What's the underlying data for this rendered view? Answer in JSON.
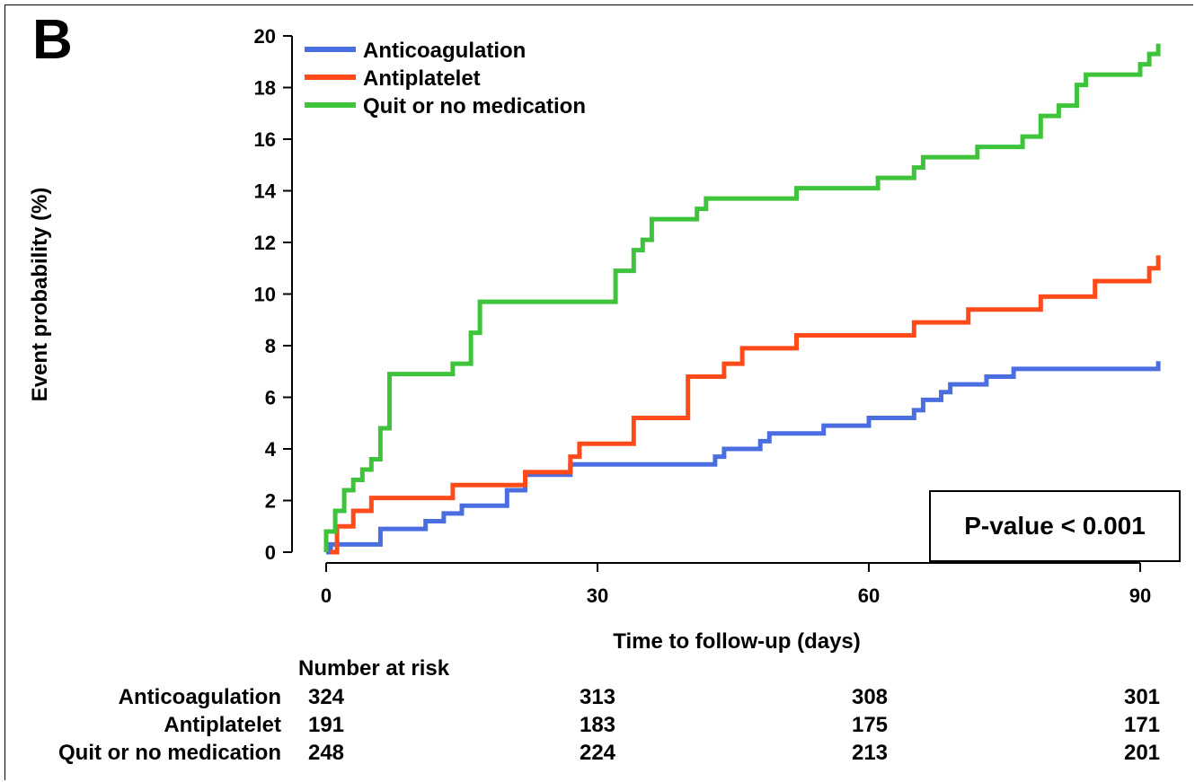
{
  "panel_label": "B",
  "chart_data": {
    "type": "line",
    "xlabel": "Time to follow-up (days)",
    "ylabel": "Event probability (%)",
    "xlim": [
      -1,
      92
    ],
    "ylim": [
      0,
      20
    ],
    "xticks": [
      0,
      30,
      60,
      90
    ],
    "yticks": [
      0,
      2,
      4,
      6,
      8,
      10,
      12,
      14,
      16,
      18,
      20
    ],
    "grid": false,
    "legend": "top-left",
    "line_style": "step",
    "series": [
      {
        "name": "Anticoagulation",
        "color": "#4a6ee0",
        "points": [
          [
            0,
            0
          ],
          [
            0.5,
            0
          ],
          [
            0.5,
            0.3
          ],
          [
            6,
            0.3
          ],
          [
            6,
            0.9
          ],
          [
            11,
            0.9
          ],
          [
            11,
            1.2
          ],
          [
            13,
            1.2
          ],
          [
            13,
            1.5
          ],
          [
            15,
            1.5
          ],
          [
            15,
            1.8
          ],
          [
            20,
            1.8
          ],
          [
            20,
            2.4
          ],
          [
            22,
            2.4
          ],
          [
            22,
            3.0
          ],
          [
            27,
            3.0
          ],
          [
            27,
            3.4
          ],
          [
            43,
            3.4
          ],
          [
            43,
            3.7
          ],
          [
            44,
            3.7
          ],
          [
            44,
            4.0
          ],
          [
            48,
            4.0
          ],
          [
            48,
            4.3
          ],
          [
            49,
            4.3
          ],
          [
            49,
            4.6
          ],
          [
            55,
            4.6
          ],
          [
            55,
            4.9
          ],
          [
            60,
            4.9
          ],
          [
            60,
            5.2
          ],
          [
            65,
            5.2
          ],
          [
            65,
            5.5
          ],
          [
            66,
            5.5
          ],
          [
            66,
            5.9
          ],
          [
            68,
            5.9
          ],
          [
            68,
            6.2
          ],
          [
            69,
            6.2
          ],
          [
            69,
            6.5
          ],
          [
            73,
            6.5
          ],
          [
            73,
            6.8
          ],
          [
            76,
            6.8
          ],
          [
            76,
            7.1
          ],
          [
            92,
            7.1
          ],
          [
            92,
            7.4
          ]
        ]
      },
      {
        "name": "Antiplatelet",
        "color": "#ff4a1a",
        "points": [
          [
            0.5,
            0
          ],
          [
            1.2,
            0
          ],
          [
            1.2,
            1.0
          ],
          [
            3,
            1.0
          ],
          [
            3,
            1.6
          ],
          [
            5,
            1.6
          ],
          [
            5,
            2.1
          ],
          [
            14,
            2.1
          ],
          [
            14,
            2.6
          ],
          [
            22,
            2.6
          ],
          [
            22,
            3.1
          ],
          [
            27,
            3.1
          ],
          [
            27,
            3.7
          ],
          [
            28,
            3.7
          ],
          [
            28,
            4.2
          ],
          [
            34,
            4.2
          ],
          [
            34,
            5.2
          ],
          [
            40,
            5.2
          ],
          [
            40,
            6.8
          ],
          [
            44,
            6.8
          ],
          [
            44,
            7.3
          ],
          [
            46,
            7.3
          ],
          [
            46,
            7.9
          ],
          [
            52,
            7.9
          ],
          [
            52,
            8.4
          ],
          [
            65,
            8.4
          ],
          [
            65,
            8.9
          ],
          [
            71,
            8.9
          ],
          [
            71,
            9.4
          ],
          [
            79,
            9.4
          ],
          [
            79,
            9.9
          ],
          [
            85,
            9.9
          ],
          [
            85,
            10.5
          ],
          [
            91,
            10.5
          ],
          [
            91,
            11.0
          ],
          [
            92,
            11.0
          ],
          [
            92,
            11.5
          ]
        ]
      },
      {
        "name": "Quit or no medication",
        "color": "#3ec43a",
        "points": [
          [
            0,
            0
          ],
          [
            0,
            0.8
          ],
          [
            1,
            0.8
          ],
          [
            1,
            1.6
          ],
          [
            2,
            1.6
          ],
          [
            2,
            2.4
          ],
          [
            3,
            2.4
          ],
          [
            3,
            2.8
          ],
          [
            4,
            2.8
          ],
          [
            4,
            3.2
          ],
          [
            5,
            3.2
          ],
          [
            5,
            3.6
          ],
          [
            6,
            3.6
          ],
          [
            6,
            4.8
          ],
          [
            7,
            4.8
          ],
          [
            7,
            6.9
          ],
          [
            14,
            6.9
          ],
          [
            14,
            7.3
          ],
          [
            16,
            7.3
          ],
          [
            16,
            8.5
          ],
          [
            17,
            8.5
          ],
          [
            17,
            9.7
          ],
          [
            32,
            9.7
          ],
          [
            32,
            10.9
          ],
          [
            34,
            10.9
          ],
          [
            34,
            11.7
          ],
          [
            35,
            11.7
          ],
          [
            35,
            12.1
          ],
          [
            36,
            12.1
          ],
          [
            36,
            12.9
          ],
          [
            41,
            12.9
          ],
          [
            41,
            13.3
          ],
          [
            42,
            13.3
          ],
          [
            42,
            13.7
          ],
          [
            52,
            13.7
          ],
          [
            52,
            14.1
          ],
          [
            61,
            14.1
          ],
          [
            61,
            14.5
          ],
          [
            65,
            14.5
          ],
          [
            65,
            14.9
          ],
          [
            66,
            14.9
          ],
          [
            66,
            15.3
          ],
          [
            72,
            15.3
          ],
          [
            72,
            15.7
          ],
          [
            77,
            15.7
          ],
          [
            77,
            16.1
          ],
          [
            79,
            16.1
          ],
          [
            79,
            16.9
          ],
          [
            81,
            16.9
          ],
          [
            81,
            17.3
          ],
          [
            83,
            17.3
          ],
          [
            83,
            18.1
          ],
          [
            84,
            18.1
          ],
          [
            84,
            18.5
          ],
          [
            90,
            18.5
          ],
          [
            90,
            18.9
          ],
          [
            91,
            18.9
          ],
          [
            91,
            19.3
          ],
          [
            92,
            19.3
          ],
          [
            92,
            19.7
          ]
        ]
      }
    ]
  },
  "pvalue": "P-value < 0.001",
  "risk_table": {
    "title": "Number at risk",
    "timepoints": [
      0,
      30,
      60,
      90
    ],
    "rows": [
      {
        "label": "Anticoagulation",
        "values": [
          "324",
          "313",
          "308",
          "301"
        ]
      },
      {
        "label": "Antiplatelet",
        "values": [
          "191",
          "183",
          "175",
          "171"
        ]
      },
      {
        "label": "Quit or no medication",
        "values": [
          "248",
          "224",
          "213",
          "201"
        ]
      }
    ]
  }
}
